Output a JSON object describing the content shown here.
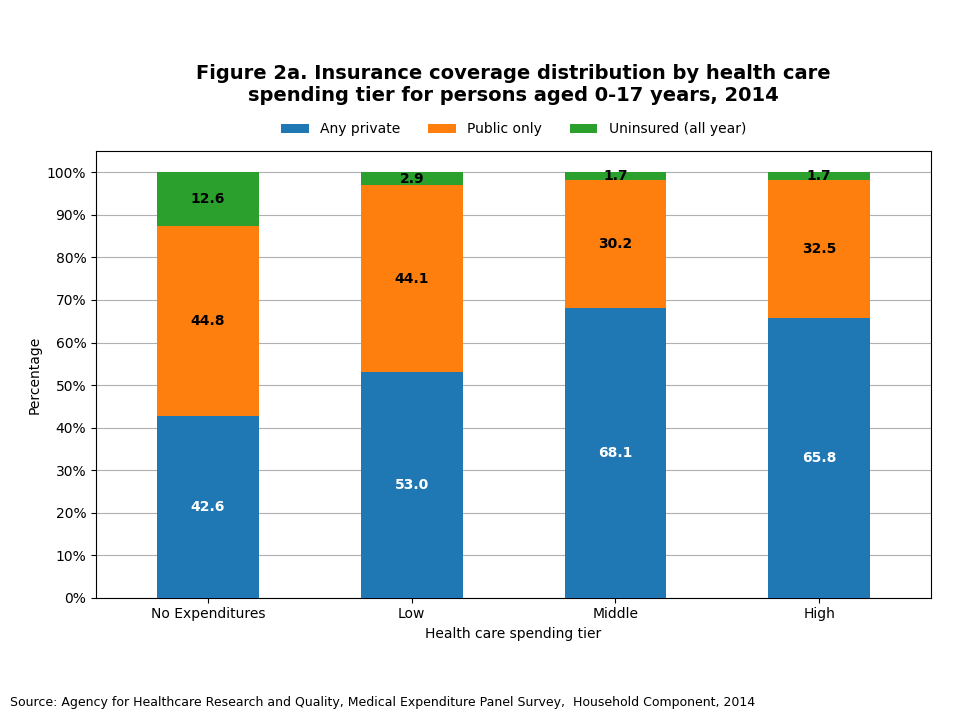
{
  "chart_data": {
    "type": "bar",
    "stacked": true,
    "title": "Figure 2a. Insurance coverage distribution by health care\nspending tier for persons aged 0-17 years, 2014",
    "xlabel": "Health care spending tier",
    "ylabel": "Percentage",
    "source": "Source: Agency for Healthcare Research and Quality, Medical Expenditure Panel Survey,  Household Component, 2014",
    "categories": [
      "No Expenditures",
      "Low",
      "Middle",
      "High"
    ],
    "series": [
      {
        "name": "Any private",
        "values": [
          42.6,
          53.0,
          68.1,
          65.8
        ],
        "value_labels": [
          "42.6",
          "53.0",
          "68.1",
          "65.8"
        ]
      },
      {
        "name": "Public only",
        "values": [
          44.8,
          44.1,
          30.2,
          32.5
        ],
        "value_labels": [
          "44.8",
          "44.1",
          "30.2",
          "32.5"
        ]
      },
      {
        "name": "Uninsured (all year)",
        "values": [
          12.6,
          2.9,
          1.7,
          1.7
        ],
        "value_labels": [
          "12.6",
          "2.9",
          "1.7",
          "1.7"
        ]
      }
    ],
    "ylim": [
      0,
      105
    ],
    "yticks": [
      {
        "value": 0,
        "label": "0%"
      },
      {
        "value": 10,
        "label": "10%"
      },
      {
        "value": 20,
        "label": "20%"
      },
      {
        "value": 30,
        "label": "30%"
      },
      {
        "value": 40,
        "label": "40%"
      },
      {
        "value": 50,
        "label": "50%"
      },
      {
        "value": 60,
        "label": "60%"
      },
      {
        "value": 70,
        "label": "70%"
      },
      {
        "value": 80,
        "label": "80%"
      },
      {
        "value": 90,
        "label": "90%"
      },
      {
        "value": 100,
        "label": "100%"
      }
    ],
    "grid": true,
    "legend": "upper center",
    "data_labels": true
  }
}
